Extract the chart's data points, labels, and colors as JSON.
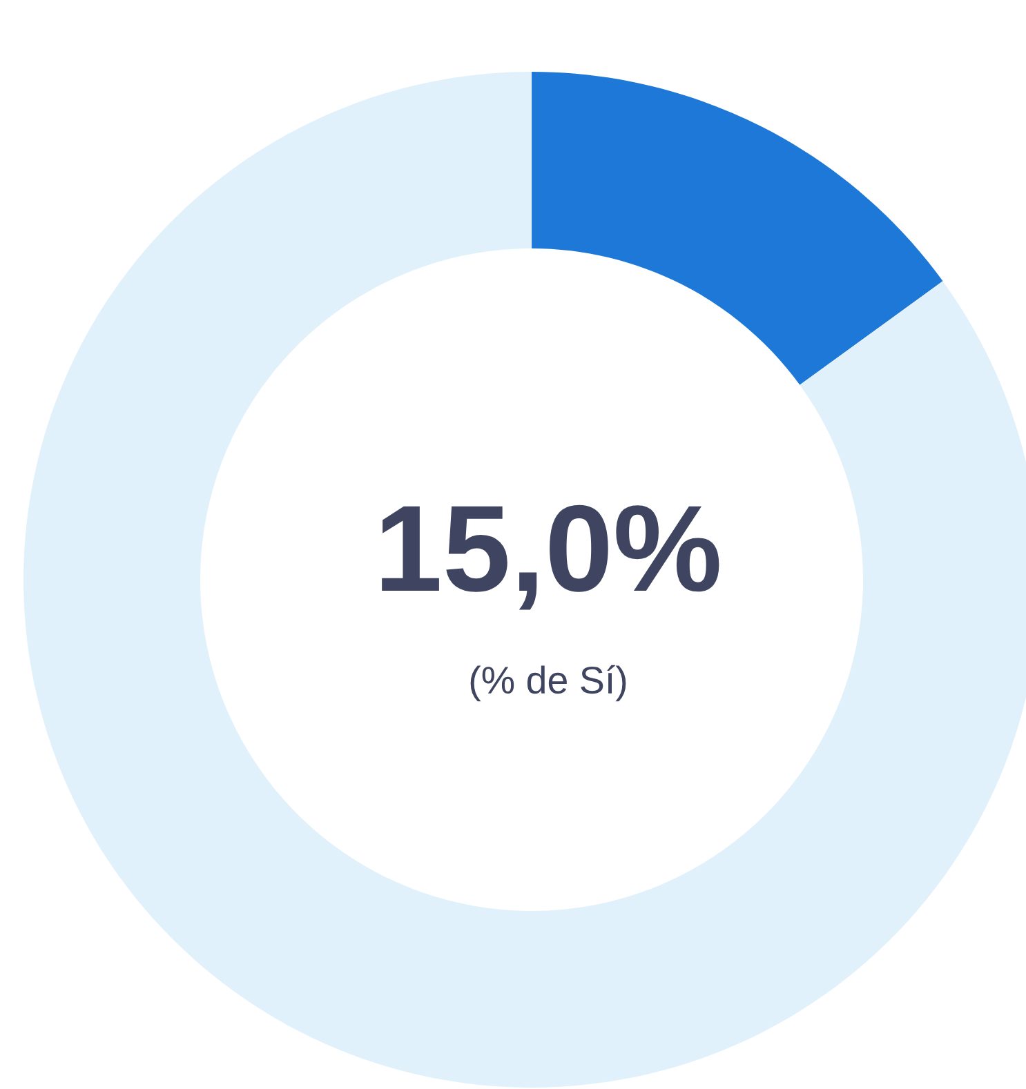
{
  "chart_data": {
    "type": "donut",
    "categories": [
      null,
      null
    ],
    "values": [
      15,
      85
    ],
    "colors": [
      "#1e78d8",
      "#e1f1fb"
    ],
    "annotations": [
      "15,0%",
      "(% de Sí)"
    ]
  }
}
